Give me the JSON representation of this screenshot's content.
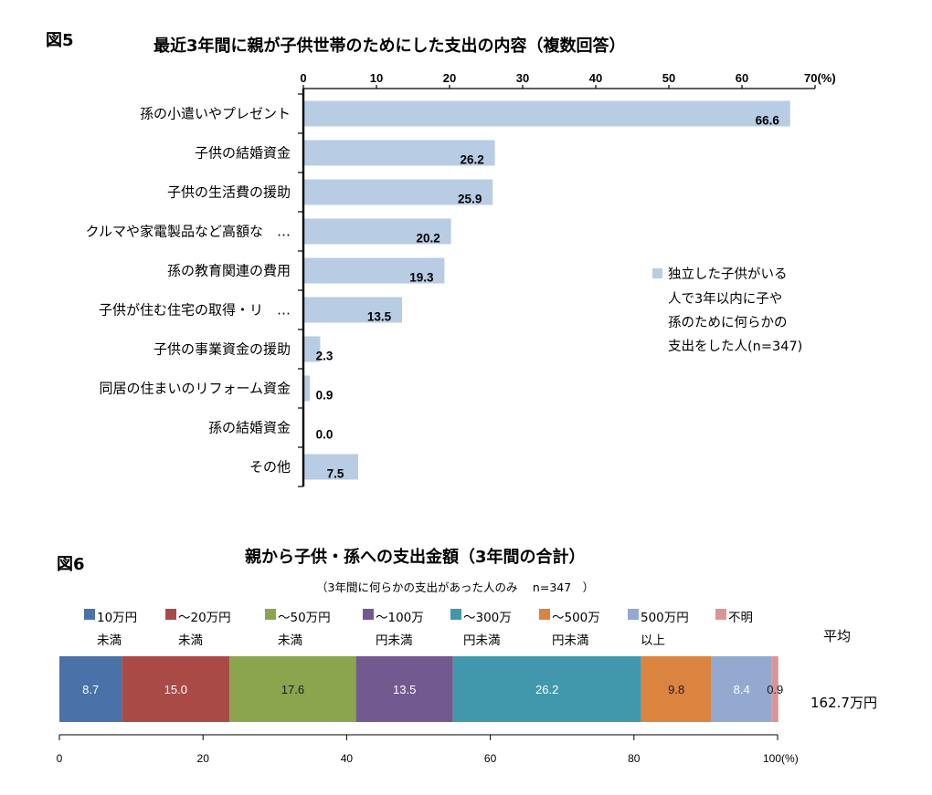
{
  "fig5": {
    "fig_label": "図5",
    "title": "最近3年間に親が子供世帯のためにした支出の内容（複数回答）",
    "axis_unit": "70(%)",
    "legend": {
      "color": "#b8cce4",
      "lines": [
        "独立した子供がいる",
        "人で3年以内に子や",
        "孫のために何らかの",
        "支出をした人(n=347)"
      ]
    }
  },
  "fig6": {
    "fig_label": "図6",
    "title": "親から子供・孫への支出金額（3年間の合計）",
    "subtitle": "（3年間に何らかの支出があった人のみ　 n=347　）",
    "avg_label": "平均",
    "avg_value": "162.7万円",
    "axis_unit": "100(%)"
  },
  "chart_data": [
    {
      "type": "bar",
      "orientation": "horizontal",
      "categories": [
        "孫の小遣いやプレゼント",
        "子供の結婚資金",
        "子供の生活費の援助",
        "クルマや家電製品など高額な　…",
        "孫の教育関連の費用",
        "子供が住む住宅の取得・リ　…",
        "子供の事業資金の援助",
        "同居の住まいのリフォーム資金",
        "孫の結婚資金",
        "その他"
      ],
      "values": [
        66.6,
        26.2,
        25.9,
        20.2,
        19.3,
        13.5,
        2.3,
        0.9,
        0.0,
        7.5
      ],
      "value_labels": [
        "66.6",
        "26.2",
        "25.9",
        "20.2",
        "19.3",
        "13.5",
        "2.3",
        "0.9",
        "0.0",
        "7.5"
      ],
      "xticks": [
        0,
        10,
        20,
        30,
        40,
        50,
        60
      ],
      "xtick_labels": [
        "0",
        "10",
        "20",
        "30",
        "40",
        "50",
        "60"
      ],
      "xlim": [
        0,
        70
      ],
      "color": "#b8cce4"
    },
    {
      "type": "bar",
      "orientation": "horizontal-stacked-100",
      "series": [
        {
          "name_lines": [
            "10万円",
            "未満"
          ],
          "value": 8.7,
          "label": "8.7",
          "color": "#4a72a8",
          "label_color": "#ffffff"
        },
        {
          "name_lines": [
            "～20万円",
            "未満"
          ],
          "value": 15.0,
          "label": "15.0",
          "color": "#a94a47",
          "label_color": "#ffffff"
        },
        {
          "name_lines": [
            "～50万円",
            "未満"
          ],
          "value": 17.6,
          "label": "17.6",
          "color": "#8aa54e",
          "label_color": "#1a1a1a"
        },
        {
          "name_lines": [
            "～100万",
            "円未満"
          ],
          "value": 13.5,
          "label": "13.5",
          "color": "#72598f",
          "label_color": "#ffffff"
        },
        {
          "name_lines": [
            "～300万",
            "円未満"
          ],
          "value": 26.2,
          "label": "26.2",
          "color": "#4198ac",
          "label_color": "#ffffff"
        },
        {
          "name_lines": [
            "～500万",
            "円未満"
          ],
          "value": 9.8,
          "label": "9.8",
          "color": "#db8440",
          "label_color": "#1a1a1a"
        },
        {
          "name_lines": [
            "500万円",
            "以上"
          ],
          "value": 8.4,
          "label": "8.4",
          "color": "#93a9d0",
          "label_color": "#ffffff"
        },
        {
          "name_lines": [
            "不明",
            ""
          ],
          "value": 0.9,
          "label": "0.9",
          "color": "#d99594",
          "label_color": "#1a1a1a"
        }
      ],
      "xticks": [
        0,
        20,
        40,
        60,
        80
      ],
      "xtick_labels": [
        "0",
        "20",
        "40",
        "60",
        "80"
      ],
      "xlim": [
        0,
        100
      ]
    }
  ]
}
